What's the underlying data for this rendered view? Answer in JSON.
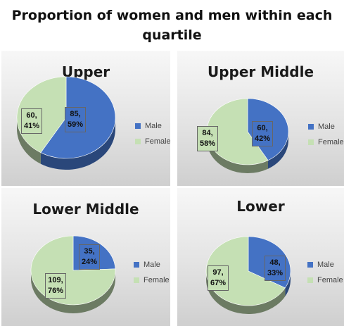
{
  "title": "Proportion of women and men within each quartile",
  "colors": {
    "male": "#4472C4",
    "female": "#C5E0B4"
  },
  "chart_data": [
    {
      "type": "pie",
      "title": "Upper",
      "categories": [
        "Male",
        "Female"
      ],
      "values": [
        85,
        60
      ],
      "percent_labels": [
        "85,\n59%",
        "60,\n41%"
      ],
      "legend": [
        "Male",
        "Female"
      ],
      "legend_position": "right"
    },
    {
      "type": "pie",
      "title": "Upper Middle",
      "categories": [
        "Male",
        "Female"
      ],
      "values": [
        60,
        84
      ],
      "percent_labels": [
        "60,\n42%",
        "84,\n58%"
      ],
      "legend": [
        "Male",
        "Female"
      ],
      "legend_position": "right"
    },
    {
      "type": "pie",
      "title": "Lower Middle",
      "categories": [
        "Male",
        "Female"
      ],
      "values": [
        35,
        109
      ],
      "percent_labels": [
        "35,\n24%",
        "109,\n76%"
      ],
      "legend": [
        "Male",
        "Female"
      ],
      "legend_position": "right"
    },
    {
      "type": "pie",
      "title": "Lower",
      "categories": [
        "Male",
        "Female"
      ],
      "values": [
        48,
        97
      ],
      "percent_labels": [
        "48,\n33%",
        "97,\n67%"
      ],
      "legend": [
        "Male",
        "Female"
      ],
      "legend_position": "right"
    }
  ]
}
